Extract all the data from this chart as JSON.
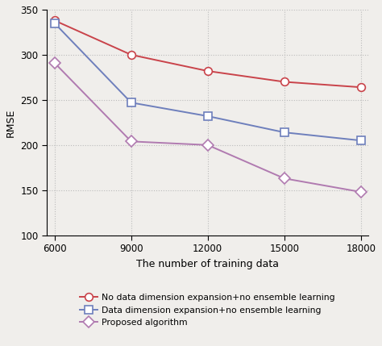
{
  "x": [
    6000,
    9000,
    12000,
    15000,
    18000
  ],
  "series": [
    {
      "label": "No data dimension expansion+no ensemble learning",
      "values": [
        338,
        300,
        282,
        270,
        264
      ],
      "color": "#c9434a",
      "marker": "o",
      "markerfacecolor": "white",
      "markeredgecolor": "#c9434a"
    },
    {
      "label": "Data dimension expansion+no ensemble learning",
      "values": [
        335,
        247,
        232,
        214,
        205
      ],
      "color": "#6e7fbc",
      "marker": "s",
      "markerfacecolor": "white",
      "markeredgecolor": "#6e7fbc"
    },
    {
      "label": "Proposed algorithm",
      "values": [
        291,
        204,
        200,
        163,
        148
      ],
      "color": "#b07ab0",
      "marker": "D",
      "markerfacecolor": "white",
      "markeredgecolor": "#b07ab0"
    }
  ],
  "xlabel": "The number of training data",
  "ylabel": "RMSE",
  "ylim": [
    100,
    350
  ],
  "yticks": [
    100,
    150,
    200,
    250,
    300,
    350
  ],
  "xticks": [
    6000,
    9000,
    12000,
    15000,
    18000
  ],
  "xlim": [
    5700,
    18300
  ],
  "grid_color": "#bbbbbb",
  "grid_style": ":",
  "background_color": "#f0eeeb",
  "plot_bg_color": "#f0eeeb",
  "linewidth": 1.4,
  "markersize": 7,
  "markeredgewidth": 1.2
}
